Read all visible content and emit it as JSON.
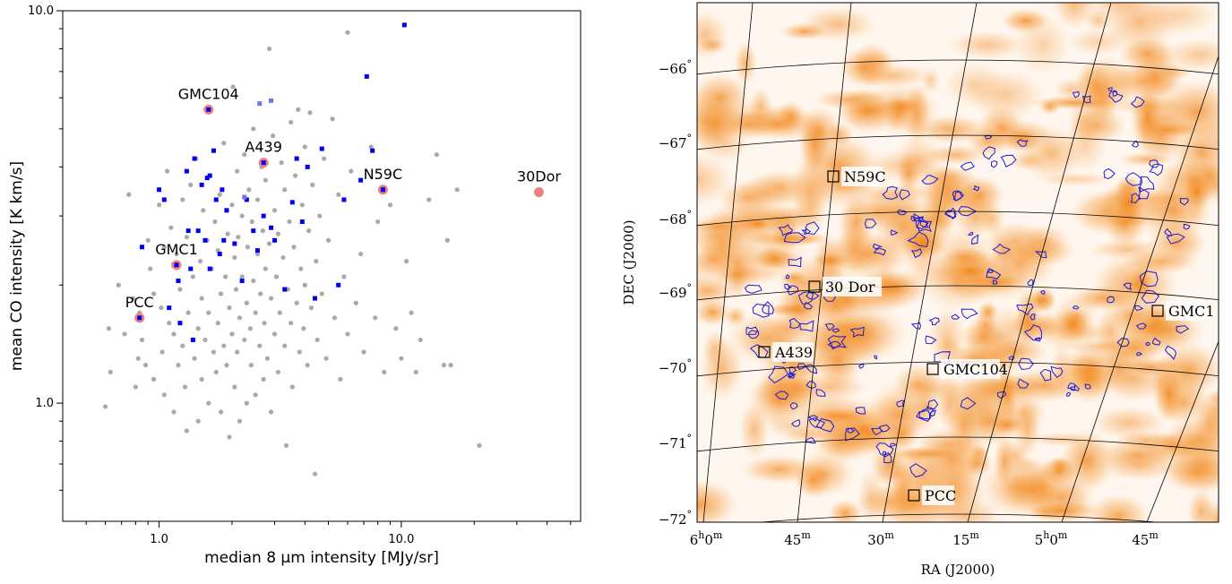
{
  "chart_data": [
    {
      "type": "scatter",
      "xlabel": "median 8 µm intensity [MJy/sr]",
      "ylabel": "mean CO intensity [K km/s]",
      "xscale": "log",
      "yscale": "log",
      "xlim": [
        0.4,
        55
      ],
      "ylim": [
        0.5,
        10
      ],
      "xticks": [
        {
          "value": 1.0,
          "label": "1.0"
        },
        {
          "value": 10.0,
          "label": "10.0"
        }
      ],
      "yticks": [
        {
          "value": 1.0,
          "label": "1.0"
        },
        {
          "value": 10.0,
          "label": "10.0"
        }
      ],
      "grid": false,
      "colors": {
        "background": "#a9a9a9",
        "detected": "#0000ee",
        "detected_light": "#6f75f0",
        "highlight": "#f08080"
      },
      "series": [
        {
          "role": "background",
          "points": [
            [
              0.6,
              0.98
            ],
            [
              0.62,
              1.55
            ],
            [
              0.63,
              1.2
            ],
            [
              0.68,
              2.0
            ],
            [
              0.72,
              1.5
            ],
            [
              0.75,
              3.4
            ],
            [
              0.78,
              1.85
            ],
            [
              0.8,
              1.1
            ],
            [
              0.82,
              1.3
            ],
            [
              0.83,
              1.7
            ],
            [
              0.85,
              1.45
            ],
            [
              0.88,
              1.25
            ],
            [
              0.9,
              2.6
            ],
            [
              0.92,
              2.2
            ],
            [
              0.95,
              1.9
            ],
            [
              0.95,
              1.15
            ],
            [
              1.0,
              3.2
            ],
            [
              1.02,
              1.75
            ],
            [
              1.03,
              1.35
            ],
            [
              1.05,
              2.5
            ],
            [
              1.05,
              1.05
            ],
            [
              1.08,
              3.9
            ],
            [
              1.1,
              1.6
            ],
            [
              1.12,
              2.8
            ],
            [
              1.15,
              1.5
            ],
            [
              1.15,
              0.95
            ],
            [
              1.18,
              2.4
            ],
            [
              1.2,
              1.25
            ],
            [
              1.22,
              1.95
            ],
            [
              1.25,
              3.3
            ],
            [
              1.25,
              1.4
            ],
            [
              1.28,
              1.1
            ],
            [
              1.3,
              2.65
            ],
            [
              1.3,
              0.85
            ],
            [
              1.32,
              1.7
            ],
            [
              1.35,
              3.6
            ],
            [
              1.38,
              2.1
            ],
            [
              1.4,
              1.3
            ],
            [
              1.42,
              4.2
            ],
            [
              1.45,
              1.55
            ],
            [
              1.45,
              0.9
            ],
            [
              1.48,
              2.3
            ],
            [
              1.5,
              1.85
            ],
            [
              1.5,
              1.15
            ],
            [
              1.52,
              3.1
            ],
            [
              1.55,
              1.45
            ],
            [
              1.58,
              2.6
            ],
            [
              1.6,
              1.0
            ],
            [
              1.6,
              1.7
            ],
            [
              1.62,
              3.8
            ],
            [
              1.65,
              2.2
            ],
            [
              1.68,
              1.35
            ],
            [
              1.7,
              2.9
            ],
            [
              1.72,
              1.2
            ],
            [
              1.75,
              1.6
            ],
            [
              1.75,
              2.45
            ],
            [
              1.78,
              3.4
            ],
            [
              1.8,
              1.9
            ],
            [
              1.8,
              0.95
            ],
            [
              1.85,
              1.4
            ],
            [
              1.85,
              4.6
            ],
            [
              1.88,
              2.1
            ],
            [
              1.9,
              1.25
            ],
            [
              1.92,
              2.7
            ],
            [
              1.95,
              1.75
            ],
            [
              1.95,
              0.82
            ],
            [
              2.0,
              3.2
            ],
            [
              2.0,
              1.5
            ],
            [
              2.02,
              6.4
            ],
            [
              2.05,
              2.35
            ],
            [
              2.05,
              1.1
            ],
            [
              2.08,
              1.95
            ],
            [
              2.1,
              3.9
            ],
            [
              2.1,
              1.35
            ],
            [
              2.12,
              2.65
            ],
            [
              2.15,
              1.65
            ],
            [
              2.15,
              0.9
            ],
            [
              2.2,
              2.1
            ],
            [
              2.2,
              3.0
            ],
            [
              2.25,
              1.45
            ],
            [
              2.25,
              4.3
            ],
            [
              2.3,
              1.8
            ],
            [
              2.3,
              1.0
            ],
            [
              2.32,
              2.5
            ],
            [
              2.35,
              3.5
            ],
            [
              2.38,
              1.55
            ],
            [
              2.4,
              1.25
            ],
            [
              2.42,
              2.9
            ],
            [
              2.45,
              2.05
            ],
            [
              2.45,
              5.0
            ],
            [
              2.5,
              1.7
            ],
            [
              2.5,
              1.05
            ],
            [
              2.55,
              3.3
            ],
            [
              2.55,
              2.4
            ],
            [
              2.6,
              1.4
            ],
            [
              2.62,
              1.9
            ],
            [
              2.65,
              4.0
            ],
            [
              2.68,
              2.75
            ],
            [
              2.7,
              1.15
            ],
            [
              2.72,
              1.6
            ],
            [
              2.75,
              2.2
            ],
            [
              2.75,
              3.7
            ],
            [
              2.8,
              1.3
            ],
            [
              2.85,
              8.0
            ],
            [
              2.85,
              2.55
            ],
            [
              2.9,
              1.85
            ],
            [
              2.9,
              0.95
            ],
            [
              2.95,
              4.8
            ],
            [
              3.0,
              1.5
            ],
            [
              3.0,
              3.1
            ],
            [
              3.05,
              2.1
            ],
            [
              3.1,
              1.2
            ],
            [
              3.1,
              2.7
            ],
            [
              3.15,
              1.7
            ],
            [
              3.2,
              4.1
            ],
            [
              3.25,
              2.35
            ],
            [
              3.3,
              1.4
            ],
            [
              3.3,
              3.5
            ],
            [
              3.35,
              0.78
            ],
            [
              3.4,
              1.95
            ],
            [
              3.45,
              2.9
            ],
            [
              3.5,
              1.6
            ],
            [
              3.5,
              5.2
            ],
            [
              3.55,
              1.1
            ],
            [
              3.6,
              2.5
            ],
            [
              3.65,
              3.8
            ],
            [
              3.7,
              1.8
            ],
            [
              3.75,
              5.6
            ],
            [
              3.8,
              1.35
            ],
            [
              3.85,
              2.2
            ],
            [
              3.9,
              3.2
            ],
            [
              3.95,
              1.55
            ],
            [
              4.0,
              4.5
            ],
            [
              4.0,
              2.0
            ],
            [
              4.1,
              1.25
            ],
            [
              4.15,
              2.75
            ],
            [
              4.2,
              5.5
            ],
            [
              4.25,
              1.75
            ],
            [
              4.3,
              3.6
            ],
            [
              4.4,
              0.66
            ],
            [
              4.45,
              2.3
            ],
            [
              4.5,
              1.45
            ],
            [
              4.6,
              3.0
            ],
            [
              4.7,
              1.9
            ],
            [
              4.8,
              4.2
            ],
            [
              4.9,
              1.3
            ],
            [
              5.0,
              2.6
            ],
            [
              5.2,
              5.3
            ],
            [
              5.3,
              1.65
            ],
            [
              5.5,
              3.4
            ],
            [
              5.6,
              1.15
            ],
            [
              5.8,
              2.1
            ],
            [
              6.0,
              8.8
            ],
            [
              6.0,
              1.5
            ],
            [
              6.2,
              3.9
            ],
            [
              6.5,
              1.8
            ],
            [
              6.8,
              2.4
            ],
            [
              7.0,
              1.35
            ],
            [
              7.5,
              4.5
            ],
            [
              7.8,
              1.65
            ],
            [
              8.0,
              2.9
            ],
            [
              8.5,
              1.2
            ],
            [
              9.0,
              3.2
            ],
            [
              9.5,
              1.55
            ],
            [
              10.0,
              1.3
            ],
            [
              10.5,
              2.3
            ],
            [
              11.0,
              1.7
            ],
            [
              11.5,
              1.2
            ],
            [
              12.0,
              1.45
            ],
            [
              13.0,
              3.3
            ],
            [
              14.0,
              4.3
            ],
            [
              15.0,
              1.25
            ],
            [
              15.5,
              2.6
            ],
            [
              16.0,
              1.25
            ],
            [
              17.0,
              3.5
            ],
            [
              21.0,
              0.78
            ]
          ]
        },
        {
          "role": "detected",
          "points": [
            [
              0.85,
              2.5
            ],
            [
              1.0,
              3.5
            ],
            [
              1.05,
              3.3
            ],
            [
              1.1,
              1.75
            ],
            [
              1.15,
              2.25
            ],
            [
              1.2,
              2.05
            ],
            [
              1.22,
              1.6
            ],
            [
              1.3,
              3.9
            ],
            [
              1.32,
              2.75
            ],
            [
              1.35,
              2.2
            ],
            [
              1.38,
              1.45
            ],
            [
              1.4,
              4.2
            ],
            [
              1.45,
              2.75
            ],
            [
              1.5,
              3.6
            ],
            [
              1.55,
              2.6
            ],
            [
              1.58,
              3.75
            ],
            [
              1.62,
              3.8
            ],
            [
              1.62,
              2.2
            ],
            [
              1.68,
              4.4
            ],
            [
              1.72,
              3.3
            ],
            [
              1.78,
              2.4
            ],
            [
              1.82,
              3.5
            ],
            [
              1.85,
              2.6
            ],
            [
              1.9,
              3.1
            ],
            [
              2.05,
              2.55
            ],
            [
              2.2,
              2.05
            ],
            [
              2.3,
              3.3
            ],
            [
              2.45,
              2.75
            ],
            [
              2.55,
              2.45
            ],
            [
              2.7,
              3.0
            ],
            [
              2.9,
              2.8
            ],
            [
              3.0,
              2.6
            ],
            [
              3.3,
              1.95
            ],
            [
              3.55,
              3.25
            ],
            [
              3.7,
              4.2
            ],
            [
              3.9,
              2.9
            ],
            [
              4.1,
              4.0
            ],
            [
              4.4,
              1.85
            ],
            [
              4.7,
              4.45
            ],
            [
              5.5,
              2.0
            ],
            [
              5.8,
              3.3
            ],
            [
              6.8,
              3.7
            ],
            [
              7.2,
              6.8
            ],
            [
              7.6,
              4.4
            ],
            [
              10.3,
              9.2
            ]
          ]
        },
        {
          "role": "detected-light",
          "points": [
            [
              0.85,
              1.65
            ],
            [
              2.6,
              5.8
            ],
            [
              2.9,
              5.9
            ],
            [
              2.25,
              3.35
            ]
          ]
        },
        {
          "role": "highlighted",
          "points": [
            {
              "name": "GMC104",
              "x": 1.6,
              "y": 5.6
            },
            {
              "name": "A439",
              "x": 2.7,
              "y": 4.1
            },
            {
              "name": "N59C",
              "x": 8.4,
              "y": 3.5
            },
            {
              "name": "30Dor",
              "x": 37.0,
              "y": 3.45
            },
            {
              "name": "GMC1",
              "x": 1.18,
              "y": 2.25
            },
            {
              "name": "PCC",
              "x": 0.83,
              "y": 1.65
            }
          ]
        }
      ]
    },
    {
      "type": "map",
      "xlabel": "RA (J2000)",
      "ylabel": "DEC (J2000)",
      "ra_ticks": [
        {
          "base": "6",
          "base_sup": "h",
          "rest": "0",
          "rest_sup": "m"
        },
        {
          "base": "45",
          "base_sup": "m"
        },
        {
          "base": "30",
          "base_sup": "m"
        },
        {
          "base": "15",
          "base_sup": "m"
        },
        {
          "base": "5",
          "base_sup": "h",
          "rest": "0",
          "rest_sup": "m"
        },
        {
          "base": "45",
          "base_sup": "m"
        }
      ],
      "dec_ticks": [
        {
          "value": "−66",
          "sup": "°"
        },
        {
          "value": "−67",
          "sup": "°"
        },
        {
          "value": "−68",
          "sup": "°"
        },
        {
          "value": "−69",
          "sup": "°"
        },
        {
          "value": "−70",
          "sup": "°"
        },
        {
          "value": "−71",
          "sup": "°"
        },
        {
          "value": "−72",
          "sup": "°"
        }
      ],
      "regions": [
        "N59C",
        "30 Dor",
        "GMC1",
        "A439",
        "GMC104",
        "PCC"
      ],
      "colors": {
        "emission": "#f28a1e",
        "contour": "#1a1ad6",
        "grid": "#000000"
      }
    }
  ]
}
